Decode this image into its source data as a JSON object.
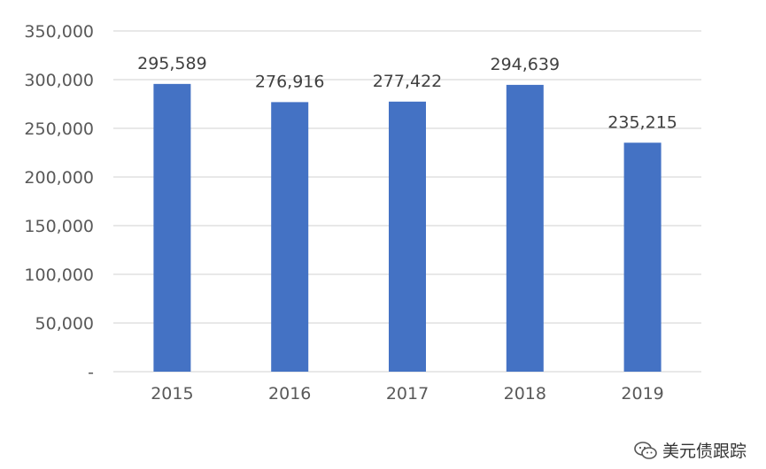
{
  "chart_data": {
    "type": "bar",
    "categories": [
      "2015",
      "2016",
      "2017",
      "2018",
      "2019"
    ],
    "values": [
      295589,
      276916,
      277422,
      294639,
      235215
    ],
    "data_labels": [
      "295,589",
      "276,916",
      "277,422",
      "294,639",
      "235,215"
    ],
    "y_ticks": [
      {
        "value": 0,
        "label": "-"
      },
      {
        "value": 50000,
        "label": "50,000"
      },
      {
        "value": 100000,
        "label": "100,000"
      },
      {
        "value": 150000,
        "label": "150,000"
      },
      {
        "value": 200000,
        "label": "200,000"
      },
      {
        "value": 250000,
        "label": "250,000"
      },
      {
        "value": 300000,
        "label": "300,000"
      },
      {
        "value": 350000,
        "label": "350,000"
      }
    ],
    "ylim": [
      0,
      350000
    ],
    "grid": true,
    "bar_color": "#4472C4",
    "grid_color": "#D9D9D9"
  },
  "watermark": {
    "text": "美元债跟踪",
    "icon": "wechat-icon"
  }
}
